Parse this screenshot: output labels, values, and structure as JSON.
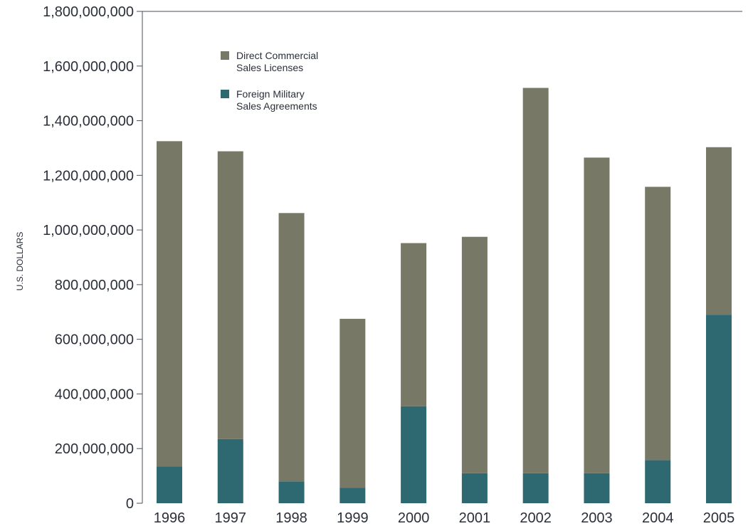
{
  "chart_data": {
    "type": "bar",
    "stacked": true,
    "ylabel": "U.S. DOLLARS",
    "xlabel": "",
    "title": "",
    "ylim": [
      0,
      1800000000
    ],
    "y_ticks": [
      "0",
      "200,000,000",
      "400,000,000",
      "600,000,000",
      "800,000,000",
      "1,000,000,000",
      "1,200,000,000",
      "1,400,000,000",
      "1,600,000,000",
      "1,800,000,000"
    ],
    "y_tick_values": [
      0,
      200000000,
      400000000,
      600000000,
      800000000,
      1000000000,
      1200000000,
      1400000000,
      1600000000,
      1800000000
    ],
    "categories": [
      "1996",
      "1997",
      "1998",
      "1999",
      "2000",
      "2001",
      "2002",
      "2003",
      "2004",
      "2005"
    ],
    "series": [
      {
        "name": "Foreign Military Sales Agreements",
        "color": "#2e6870",
        "values": [
          135000000,
          235000000,
          80000000,
          57000000,
          355000000,
          110000000,
          110000000,
          110000000,
          158000000,
          690000000
        ]
      },
      {
        "name": "Direct Commercial Sales Licenses",
        "color": "#787866",
        "values": [
          1190000000,
          1053000000,
          982000000,
          618000000,
          597000000,
          865000000,
          1410000000,
          1155000000,
          1000000000,
          613000000
        ]
      }
    ],
    "legend": {
      "position": "top-left",
      "entries": [
        {
          "line1": "Direct Commercial",
          "line2": "Sales Licenses",
          "color": "#787866"
        },
        {
          "line1": "Foreign Military",
          "line2": "Sales Agreements",
          "color": "#2e6870"
        }
      ]
    },
    "grid": false
  }
}
